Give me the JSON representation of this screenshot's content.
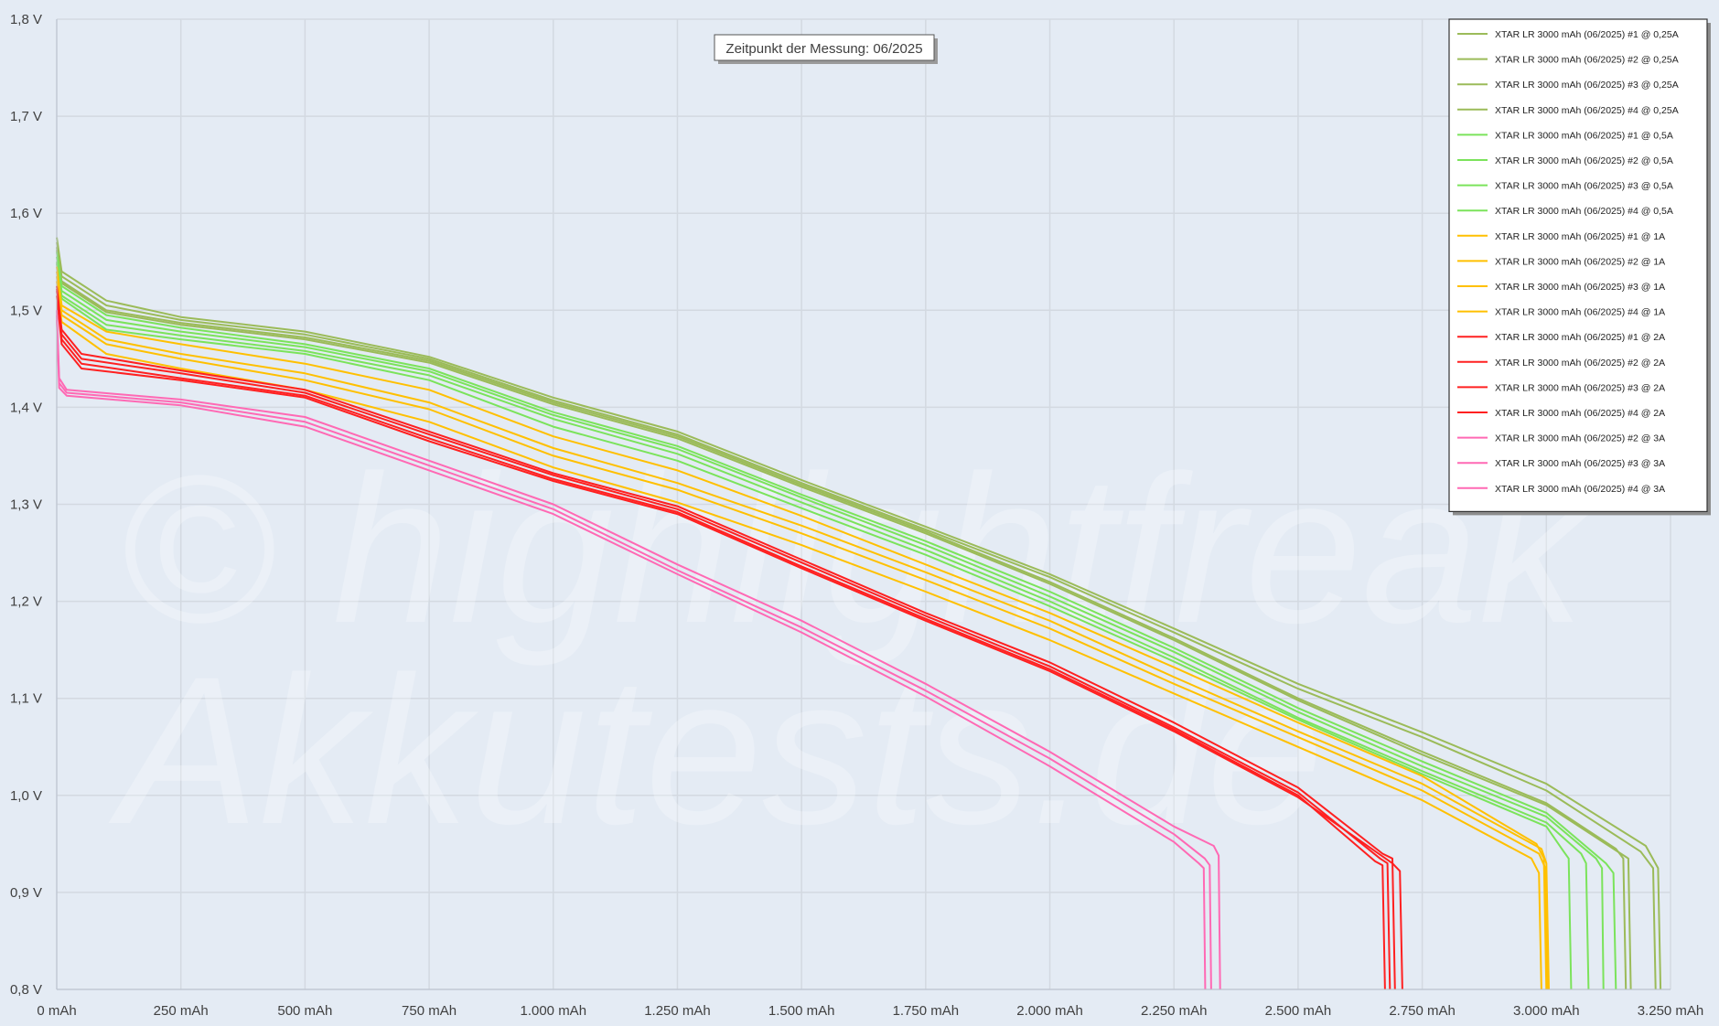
{
  "watermark": {
    "line1": "© highlightfreak",
    "line2": "Akkutests.de"
  },
  "chart_data": {
    "type": "line",
    "title": "",
    "xlabel": "",
    "ylabel": "",
    "annotation": "Zeitpunkt der Messung: 06/2025",
    "xlim": [
      0,
      3250
    ],
    "ylim": [
      0.8,
      1.8
    ],
    "grid": true,
    "legend_position": "top-right",
    "x_ticks": [
      0,
      250,
      500,
      750,
      1000,
      1250,
      1500,
      1750,
      2000,
      2250,
      2500,
      2750,
      3000,
      3250
    ],
    "x_tick_labels": [
      "0 mAh",
      "250 mAh",
      "500 mAh",
      "750 mAh",
      "1.000 mAh",
      "1.250 mAh",
      "1.500 mAh",
      "1.750 mAh",
      "2.000 mAh",
      "2.250 mAh",
      "2.500 mAh",
      "2.750 mAh",
      "3.000 mAh",
      "3.250 mAh"
    ],
    "y_ticks": [
      0.8,
      0.9,
      1.0,
      1.1,
      1.2,
      1.3,
      1.4,
      1.5,
      1.6,
      1.7,
      1.8
    ],
    "y_tick_labels": [
      "0,8 V",
      "0,9 V",
      "1,0 V",
      "1,1 V",
      "1,2 V",
      "1,3 V",
      "1,4 V",
      "1,5 V",
      "1,6 V",
      "1,7 V",
      "1,8 V"
    ],
    "series": [
      {
        "name": "XTAR LR 3000 mAh (06/2025) #1 @ 0,25A",
        "color": "#9bbb59",
        "x": [
          0,
          10,
          100,
          250,
          500,
          750,
          1000,
          1250,
          1500,
          1750,
          2000,
          2250,
          2500,
          2750,
          3000,
          3200,
          3225,
          3230
        ],
        "y": [
          1.575,
          1.54,
          1.51,
          1.493,
          1.478,
          1.452,
          1.41,
          1.375,
          1.325,
          1.277,
          1.228,
          1.172,
          1.115,
          1.065,
          1.012,
          0.948,
          0.925,
          0.8
        ]
      },
      {
        "name": "XTAR LR 3000 mAh (06/2025) #2 @ 0,25A",
        "color": "#9bbb59",
        "x": [
          0,
          10,
          100,
          250,
          500,
          750,
          1000,
          1250,
          1500,
          1750,
          2000,
          2250,
          2500,
          2750,
          3000,
          3190,
          3215,
          3220
        ],
        "y": [
          1.57,
          1.535,
          1.505,
          1.49,
          1.475,
          1.45,
          1.407,
          1.372,
          1.322,
          1.274,
          1.225,
          1.168,
          1.11,
          1.06,
          1.005,
          0.942,
          0.925,
          0.8
        ]
      },
      {
        "name": "XTAR LR 3000 mAh (06/2025) #3 @ 0,25A",
        "color": "#9bbb59",
        "x": [
          0,
          10,
          100,
          250,
          500,
          750,
          1000,
          1250,
          1500,
          1750,
          2000,
          2250,
          2500,
          2750,
          3000,
          3140,
          3155,
          3160
        ],
        "y": [
          1.565,
          1.53,
          1.5,
          1.487,
          1.472,
          1.448,
          1.405,
          1.37,
          1.32,
          1.272,
          1.22,
          1.162,
          1.1,
          1.045,
          0.992,
          0.945,
          0.935,
          0.8
        ]
      },
      {
        "name": "XTAR LR 3000 mAh (06/2025) #4 @ 0,25A",
        "color": "#9bbb59",
        "x": [
          0,
          10,
          100,
          250,
          500,
          750,
          1000,
          1250,
          1500,
          1750,
          2000,
          2250,
          2500,
          2750,
          3000,
          3150,
          3165,
          3170
        ],
        "y": [
          1.562,
          1.528,
          1.498,
          1.485,
          1.47,
          1.446,
          1.403,
          1.368,
          1.318,
          1.27,
          1.218,
          1.16,
          1.098,
          1.042,
          0.99,
          0.94,
          0.935,
          0.8
        ]
      },
      {
        "name": "XTAR LR 3000 mAh (06/2025) #1 @ 0,5A",
        "color": "#7be35b",
        "x": [
          0,
          10,
          100,
          250,
          500,
          750,
          1000,
          1250,
          1500,
          1750,
          2000,
          2250,
          2500,
          2750,
          3000,
          3120,
          3135,
          3140
        ],
        "y": [
          1.56,
          1.525,
          1.495,
          1.482,
          1.465,
          1.44,
          1.395,
          1.36,
          1.31,
          1.262,
          1.21,
          1.152,
          1.09,
          1.035,
          0.982,
          0.93,
          0.92,
          0.8
        ]
      },
      {
        "name": "XTAR LR 3000 mAh (06/2025) #2 @ 0,5A",
        "color": "#7be35b",
        "x": [
          0,
          10,
          100,
          250,
          500,
          750,
          1000,
          1250,
          1500,
          1750,
          2000,
          2250,
          2500,
          2750,
          3000,
          3100,
          3112,
          3115
        ],
        "y": [
          1.555,
          1.52,
          1.49,
          1.478,
          1.462,
          1.437,
          1.392,
          1.357,
          1.307,
          1.258,
          1.205,
          1.148,
          1.086,
          1.03,
          0.978,
          0.935,
          0.925,
          0.8
        ]
      },
      {
        "name": "XTAR LR 3000 mAh (06/2025) #3 @ 0,5A",
        "color": "#7be35b",
        "x": [
          0,
          10,
          100,
          250,
          500,
          750,
          1000,
          1250,
          1500,
          1750,
          2000,
          2250,
          2500,
          2750,
          3000,
          3070,
          3080,
          3085
        ],
        "y": [
          1.55,
          1.515,
          1.485,
          1.474,
          1.458,
          1.433,
          1.388,
          1.352,
          1.302,
          1.253,
          1.2,
          1.142,
          1.08,
          1.025,
          0.972,
          0.94,
          0.93,
          0.8
        ]
      },
      {
        "name": "XTAR LR 3000 mAh (06/2025) #4 @ 0,5A",
        "color": "#7be35b",
        "x": [
          0,
          10,
          100,
          250,
          500,
          750,
          1000,
          1250,
          1500,
          1750,
          2000,
          2250,
          2500,
          2750,
          3000,
          3035,
          3045,
          3050
        ],
        "y": [
          1.548,
          1.512,
          1.48,
          1.47,
          1.455,
          1.428,
          1.38,
          1.345,
          1.296,
          1.248,
          1.195,
          1.138,
          1.078,
          1.022,
          0.968,
          0.942,
          0.935,
          0.8
        ]
      },
      {
        "name": "XTAR LR 3000 mAh (06/2025) #1 @ 1A",
        "color": "#ffc000",
        "x": [
          0,
          10,
          100,
          250,
          500,
          750,
          1000,
          1250,
          1500,
          1750,
          2000,
          2250,
          2500,
          2750,
          2980,
          2995,
          3000
        ],
        "y": [
          1.545,
          1.505,
          1.478,
          1.465,
          1.445,
          1.418,
          1.37,
          1.335,
          1.288,
          1.238,
          1.188,
          1.132,
          1.075,
          1.02,
          0.95,
          0.935,
          0.8
        ]
      },
      {
        "name": "XTAR LR 3000 mAh (06/2025) #2 @ 1A",
        "color": "#ffc000",
        "x": [
          0,
          10,
          100,
          250,
          500,
          750,
          1000,
          1250,
          1500,
          1750,
          2000,
          2250,
          2500,
          2750,
          2990,
          3000,
          3005
        ],
        "y": [
          1.54,
          1.5,
          1.47,
          1.455,
          1.435,
          1.405,
          1.358,
          1.322,
          1.278,
          1.23,
          1.18,
          1.122,
          1.066,
          1.012,
          0.945,
          0.93,
          0.8
        ]
      },
      {
        "name": "XTAR LR 3000 mAh (06/2025) #3 @ 1A",
        "color": "#ffc000",
        "x": [
          0,
          10,
          100,
          250,
          500,
          750,
          1000,
          1250,
          1500,
          1750,
          2000,
          2250,
          2500,
          2750,
          2985,
          2998,
          3002
        ],
        "y": [
          1.535,
          1.495,
          1.465,
          1.45,
          1.428,
          1.398,
          1.35,
          1.315,
          1.27,
          1.222,
          1.172,
          1.115,
          1.06,
          1.005,
          0.94,
          0.925,
          0.8
        ]
      },
      {
        "name": "XTAR LR 3000 mAh (06/2025) #4 @ 1A",
        "color": "#ffc000",
        "x": [
          0,
          10,
          100,
          250,
          500,
          750,
          1000,
          1250,
          1500,
          1750,
          2000,
          2250,
          2500,
          2750,
          2970,
          2985,
          2990
        ],
        "y": [
          1.53,
          1.488,
          1.455,
          1.44,
          1.418,
          1.385,
          1.338,
          1.302,
          1.258,
          1.21,
          1.16,
          1.105,
          1.05,
          0.995,
          0.935,
          0.92,
          0.8
        ]
      },
      {
        "name": "XTAR LR 3000 mAh (06/2025) #1 @ 2A",
        "color": "#ff2020",
        "x": [
          0,
          10,
          50,
          250,
          500,
          750,
          1000,
          1250,
          1500,
          1750,
          2000,
          2250,
          2500,
          2670,
          2690,
          2695
        ],
        "y": [
          1.525,
          1.48,
          1.455,
          1.438,
          1.418,
          1.375,
          1.332,
          1.298,
          1.243,
          1.188,
          1.137,
          1.075,
          1.008,
          0.94,
          0.935,
          0.8
        ]
      },
      {
        "name": "XTAR LR 3000 mAh (06/2025) #2 @ 2A",
        "color": "#ff2020",
        "x": [
          0,
          10,
          50,
          250,
          500,
          750,
          1000,
          1250,
          1500,
          1750,
          2000,
          2250,
          2500,
          2665,
          2680,
          2685
        ],
        "y": [
          1.522,
          1.475,
          1.45,
          1.435,
          1.415,
          1.372,
          1.33,
          1.295,
          1.24,
          1.185,
          1.133,
          1.07,
          1.003,
          0.935,
          0.93,
          0.8
        ]
      },
      {
        "name": "XTAR LR 3000 mAh (06/2025) #3 @ 2A",
        "color": "#ff2020",
        "x": [
          0,
          10,
          50,
          250,
          500,
          750,
          1000,
          1250,
          1500,
          1750,
          2000,
          2250,
          2500,
          2655,
          2670,
          2675
        ],
        "y": [
          1.52,
          1.47,
          1.445,
          1.43,
          1.412,
          1.368,
          1.326,
          1.292,
          1.236,
          1.182,
          1.13,
          1.068,
          1.0,
          0.932,
          0.928,
          0.8
        ]
      },
      {
        "name": "XTAR LR 3000 mAh (06/2025) #4 @ 2A",
        "color": "#ff2020",
        "x": [
          0,
          10,
          50,
          250,
          500,
          750,
          1000,
          1250,
          1500,
          1750,
          2000,
          2250,
          2500,
          2690,
          2705,
          2710
        ],
        "y": [
          1.515,
          1.465,
          1.44,
          1.428,
          1.41,
          1.365,
          1.324,
          1.29,
          1.234,
          1.18,
          1.128,
          1.066,
          0.998,
          0.93,
          0.922,
          0.8
        ]
      },
      {
        "name": "XTAR LR 3000 mAh (06/2025) #2 @ 3A",
        "color": "#ff69b4",
        "x": [
          0,
          5,
          20,
          250,
          500,
          750,
          1000,
          1250,
          1500,
          1750,
          2000,
          2250,
          2330,
          2340,
          2343
        ],
        "y": [
          1.5,
          1.43,
          1.418,
          1.408,
          1.39,
          1.345,
          1.3,
          1.238,
          1.18,
          1.115,
          1.045,
          0.968,
          0.948,
          0.938,
          0.8
        ]
      },
      {
        "name": "XTAR LR 3000 mAh (06/2025) #3 @ 3A",
        "color": "#ff69b4",
        "x": [
          0,
          5,
          20,
          250,
          500,
          750,
          1000,
          1250,
          1500,
          1750,
          2000,
          2250,
          2312,
          2322,
          2325
        ],
        "y": [
          1.495,
          1.425,
          1.415,
          1.405,
          1.385,
          1.34,
          1.295,
          1.232,
          1.173,
          1.108,
          1.038,
          0.96,
          0.935,
          0.928,
          0.8
        ]
      },
      {
        "name": "XTAR LR 3000 mAh (06/2025) #4 @ 3A",
        "color": "#ff69b4",
        "x": [
          0,
          5,
          20,
          250,
          500,
          750,
          1000,
          1250,
          1500,
          1750,
          2000,
          2250,
          2300,
          2310,
          2313
        ],
        "y": [
          1.49,
          1.42,
          1.412,
          1.402,
          1.38,
          1.335,
          1.29,
          1.228,
          1.168,
          1.102,
          1.03,
          0.952,
          0.93,
          0.925,
          0.8
        ]
      }
    ]
  }
}
